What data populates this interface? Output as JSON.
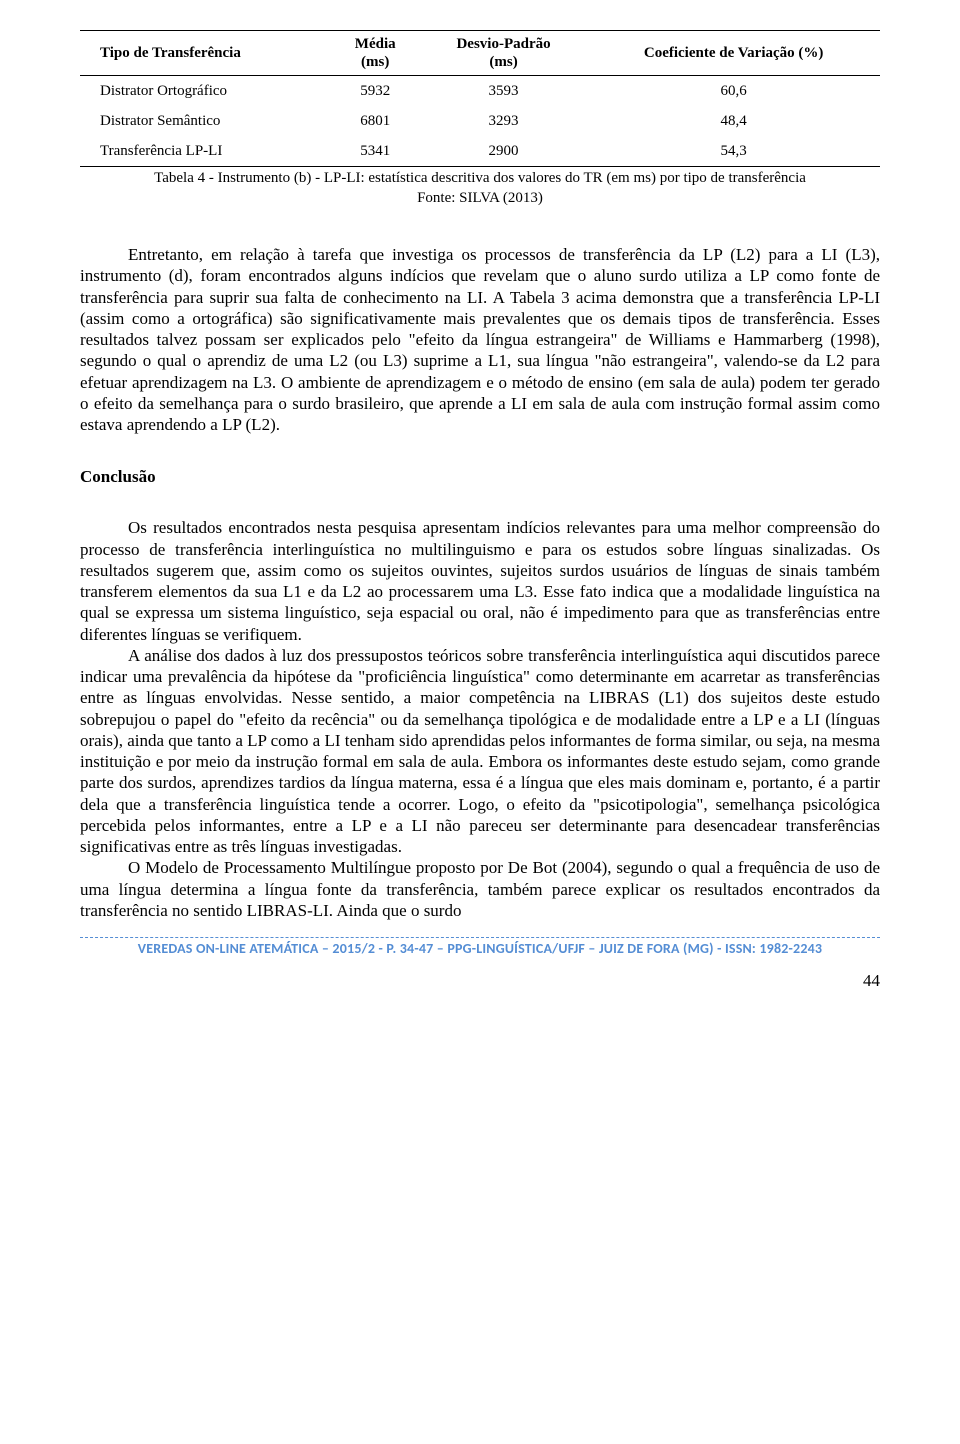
{
  "table": {
    "headers": [
      "Tipo de Transferência",
      "Média\n(ms)",
      "Desvio-Padrão\n(ms)",
      "Coeficiente de Variação (%)"
    ],
    "rows": [
      [
        "Distrator Ortográfico",
        "5932",
        "3593",
        "60,6"
      ],
      [
        "Distrator Semântico",
        "6801",
        "3293",
        "48,4"
      ],
      [
        "Transferência LP-LI",
        "5341",
        "2900",
        "54,3"
      ]
    ],
    "caption_line1": "Tabela 4 - Instrumento (b) - LP-LI: estatística descritiva dos valores do TR (em ms) por tipo de transferência",
    "caption_line2": "Fonte: SILVA (2013)"
  },
  "para1": "Entretanto, em relação à tarefa que investiga os processos de transferência da LP (L2) para a LI (L3), instrumento (d), foram encontrados alguns indícios que revelam que o aluno surdo utiliza a LP como fonte de transferência para suprir sua falta de conhecimento na LI. A Tabela 3 acima demonstra que a transferência LP-LI (assim como a ortográfica) são significativamente mais prevalentes que os demais tipos de transferência. Esses resultados talvez possam ser explicados pelo \"efeito da língua estrangeira\" de Williams e Hammarberg (1998), segundo o qual o aprendiz de uma L2 (ou L3) suprime a L1, sua língua \"não estrangeira\", valendo-se da L2 para efetuar aprendizagem na L3. O ambiente de aprendizagem e o método de ensino (em sala de aula) podem ter gerado o efeito da semelhança para o surdo brasileiro, que aprende a LI em sala de aula com instrução formal assim como estava aprendendo a LP (L2).",
  "section_title": "Conclusão",
  "para2": "Os resultados encontrados nesta pesquisa apresentam indícios relevantes para uma melhor compreensão do processo de transferência interlinguística no multilinguismo e para os estudos sobre línguas sinalizadas. Os resultados sugerem que, assim como os sujeitos ouvintes, sujeitos surdos usuários de línguas de sinais também transferem elementos da sua L1 e da L2 ao processarem uma L3. Esse fato indica que a modalidade linguística na qual se expressa um sistema linguístico, seja espacial ou oral, não é impedimento para que as transferências entre diferentes línguas se verifiquem.",
  "para3": "A análise dos dados à luz dos pressupostos teóricos sobre transferência interlinguística aqui discutidos parece indicar uma prevalência da hipótese da \"proficiência linguística\" como determinante em acarretar as transferências entre as línguas envolvidas. Nesse sentido, a maior competência na LIBRAS (L1) dos sujeitos deste estudo sobrepujou o papel do \"efeito da recência\" ou da semelhança tipológica e de modalidade entre a LP e a LI (línguas orais), ainda que tanto a LP como a LI tenham sido aprendidas pelos informantes de forma similar, ou seja, na mesma instituição e por meio da instrução formal em sala de aula. Embora os informantes deste estudo sejam, como grande parte dos surdos, aprendizes tardios da língua materna, essa é a língua que eles mais dominam e, portanto, é a partir dela que a transferência linguística tende a ocorrer. Logo, o efeito da \"psicotipologia\", semelhança psicológica percebida pelos informantes, entre a LP e a LI não pareceu ser determinante para desencadear transferências significativas entre as três línguas investigadas.",
  "para4": "O Modelo de Processamento Multilíngue proposto por De Bot (2004), segundo o qual a frequência de uso de uma língua determina a língua fonte da transferência, também parece explicar os resultados encontrados da transferência no sentido LIBRAS-LI. Ainda que o surdo",
  "footer": "VEREDAS ON-LINE ATEMÁTICA – 2015/2 - P. 34-47 – PPG-LINGUÍSTICA/UFJF – JUIZ DE FORA (MG) - ISSN: 1982-2243",
  "page_number": "44"
}
